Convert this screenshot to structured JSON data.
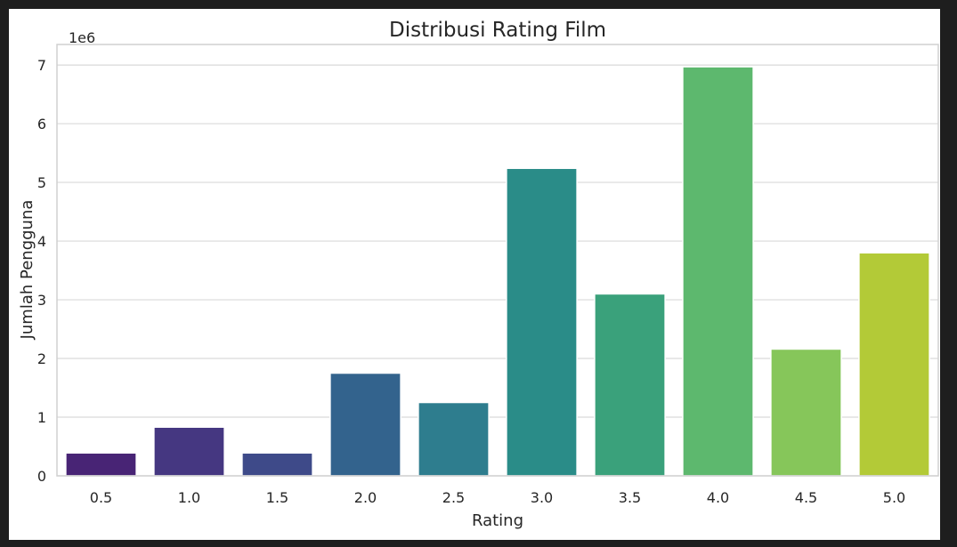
{
  "chart_data": {
    "type": "bar",
    "title": "Distribusi Rating Film",
    "xlabel": "Rating",
    "ylabel": "Jumlah Pengguna",
    "offset_label": "1e6",
    "categories": [
      "0.5",
      "1.0",
      "1.5",
      "2.0",
      "2.5",
      "3.0",
      "3.5",
      "4.0",
      "4.5",
      "5.0"
    ],
    "values": [
      0.39,
      0.83,
      0.39,
      1.75,
      1.25,
      5.24,
      3.1,
      6.97,
      2.16,
      3.8
    ],
    "ylim": [
      0,
      7.35
    ],
    "yticks": [
      "0",
      "1",
      "2",
      "3",
      "4",
      "5",
      "6",
      "7"
    ],
    "grid": "horizontal",
    "colors": [
      "#482475",
      "#453781",
      "#3e4a89",
      "#33638d",
      "#2e7d8e",
      "#2a8c88",
      "#3aa17b",
      "#5db86e",
      "#86c65a",
      "#b3ca37"
    ]
  }
}
